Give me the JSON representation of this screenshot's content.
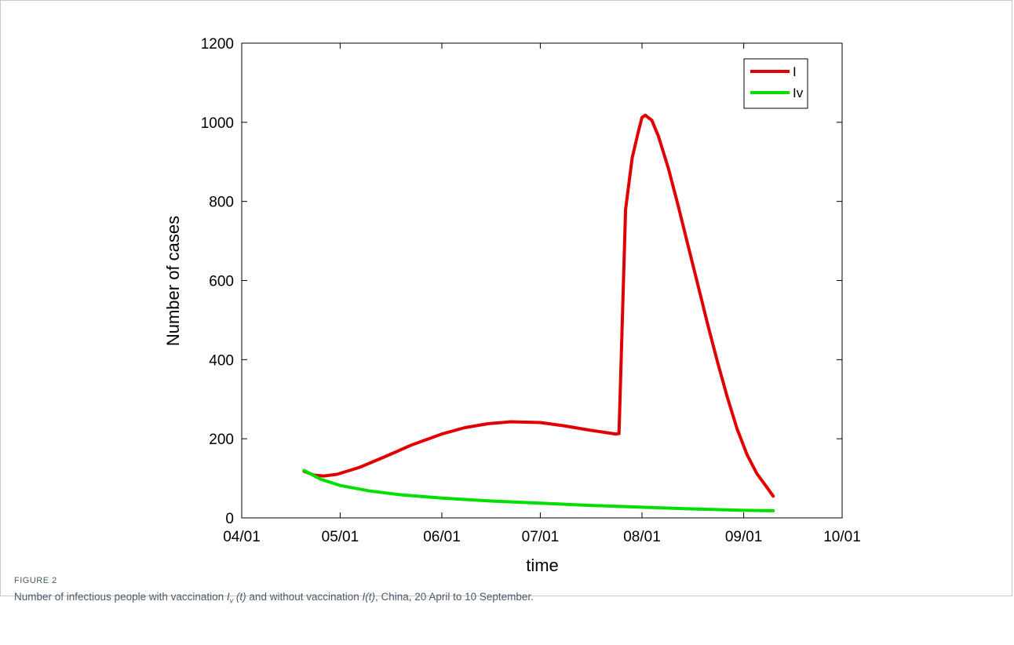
{
  "figure": {
    "label": "FIGURE 2",
    "caption": {
      "part1": "Number of infectious people with vaccination ",
      "iv_symbol": "I",
      "iv_sub": "v",
      "iv_arg": " (t)",
      "part2": " and without vaccination ",
      "i_symbol": "I(t)",
      "part3": ", China, 20 April to 10 September."
    }
  },
  "chart_data": {
    "type": "line",
    "title": "",
    "xlabel": "time",
    "ylabel": "Number of cases",
    "x_ticks": [
      "04/01",
      "05/01",
      "06/01",
      "07/01",
      "08/01",
      "09/01",
      "10/01"
    ],
    "xlim": [
      "04/01",
      "10/01"
    ],
    "y_ticks": [
      0,
      200,
      400,
      600,
      800,
      1000,
      1200
    ],
    "ylim": [
      0,
      1200
    ],
    "grid": false,
    "legend_position": "top-right",
    "series": [
      {
        "name": "I",
        "color": "#e00000",
        "points": [
          [
            "04/20",
            118
          ],
          [
            "04/23",
            108
          ],
          [
            "04/26",
            106
          ],
          [
            "04/30",
            110
          ],
          [
            "05/07",
            128
          ],
          [
            "05/15",
            156
          ],
          [
            "05/23",
            185
          ],
          [
            "06/01",
            212
          ],
          [
            "06/08",
            228
          ],
          [
            "06/15",
            238
          ],
          [
            "06/22",
            243
          ],
          [
            "07/01",
            241
          ],
          [
            "07/08",
            233
          ],
          [
            "07/16",
            222
          ],
          [
            "07/24",
            212
          ],
          [
            "07/25",
            213
          ],
          [
            "07/27",
            780
          ],
          [
            "07/29",
            910
          ],
          [
            "07/31",
            980
          ],
          [
            "08/01",
            1012
          ],
          [
            "08/02",
            1018
          ],
          [
            "08/04",
            1005
          ],
          [
            "08/06",
            965
          ],
          [
            "08/09",
            885
          ],
          [
            "08/12",
            790
          ],
          [
            "08/15",
            690
          ],
          [
            "08/18",
            590
          ],
          [
            "08/21",
            490
          ],
          [
            "08/24",
            395
          ],
          [
            "08/27",
            305
          ],
          [
            "08/30",
            225
          ],
          [
            "09/02",
            160
          ],
          [
            "09/05",
            112
          ],
          [
            "09/08",
            78
          ],
          [
            "09/10",
            55
          ]
        ]
      },
      {
        "name": "Iv",
        "color": "#00e000",
        "points": [
          [
            "04/20",
            120
          ],
          [
            "04/25",
            98
          ],
          [
            "05/01",
            82
          ],
          [
            "05/10",
            68
          ],
          [
            "05/20",
            58
          ],
          [
            "06/01",
            50
          ],
          [
            "06/15",
            43
          ],
          [
            "07/01",
            37
          ],
          [
            "07/15",
            32
          ],
          [
            "08/01",
            27
          ],
          [
            "08/15",
            23
          ],
          [
            "09/01",
            19
          ],
          [
            "09/10",
            18
          ]
        ]
      }
    ]
  }
}
